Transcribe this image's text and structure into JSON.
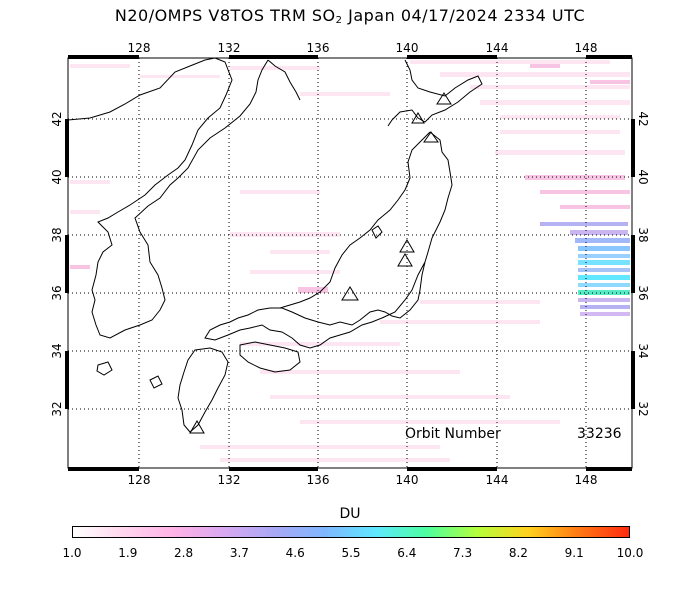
{
  "title_main": "N20/OMPS V8TOS TRM SO",
  "title_sub": "2",
  "title_rest": " Japan 04/17/2024 2334 UTC",
  "orbit": {
    "label": "Orbit Number",
    "value": "33236"
  },
  "axes": {
    "lon_ticks": [
      "128",
      "132",
      "136",
      "140",
      "144",
      "148"
    ],
    "lat_ticks": [
      "32",
      "34",
      "36",
      "38",
      "40",
      "42"
    ]
  },
  "colorbar": {
    "title": "DU",
    "labels": [
      "1.0",
      "1.9",
      "2.8",
      "3.7",
      "4.6",
      "5.5",
      "6.4",
      "7.3",
      "8.2",
      "9.1",
      "10.0"
    ],
    "colors": [
      "#ffffff",
      "#ffd6ee",
      "#ffb3e6",
      "#d9a8f0",
      "#a8a8f5",
      "#7fb7ff",
      "#5fe8ff",
      "#4cff9f",
      "#b4ff3c",
      "#ffd21e",
      "#ff7a14",
      "#ff2a10"
    ]
  }
}
